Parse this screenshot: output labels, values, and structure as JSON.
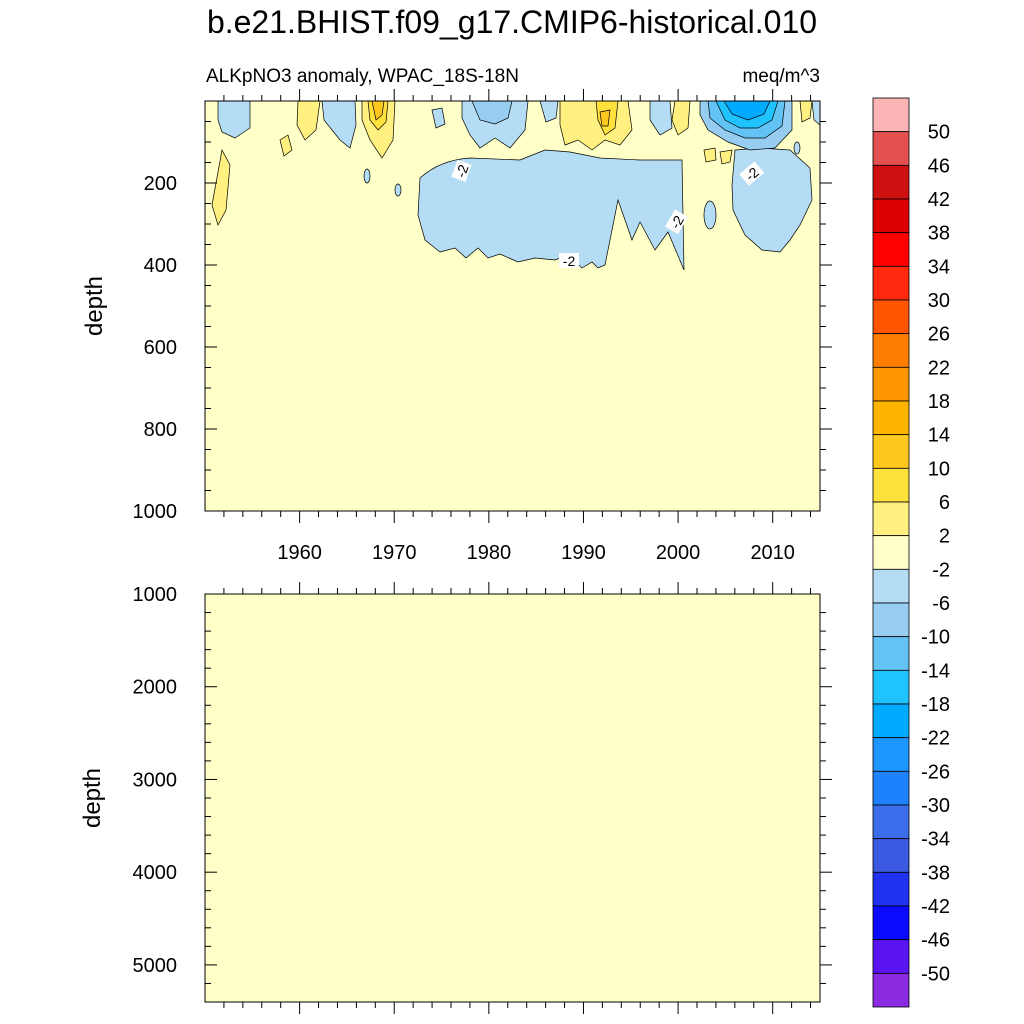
{
  "chart_data": {
    "type": "heatmap",
    "title": "b.e21.BHIST.f09_g17.CMIP6-historical.010",
    "subtitle_left": "ALKpNO3 anomaly, WPAC_18S-18N",
    "subtitle_right": "meq/m^3",
    "colorbar": {
      "labels": [
        "50",
        "46",
        "42",
        "38",
        "34",
        "30",
        "26",
        "22",
        "18",
        "14",
        "10",
        "6",
        "2",
        "-2",
        "-6",
        "-10",
        "-14",
        "-18",
        "-22",
        "-26",
        "-30",
        "-34",
        "-38",
        "-42",
        "-46",
        "-50"
      ],
      "colors": [
        "#fdb4b4",
        "#e45050",
        "#cf1010",
        "#dd0000",
        "#ff0000",
        "#ff2a0e",
        "#ff5500",
        "#ff7d00",
        "#ff9800",
        "#ffb400",
        "#ffc81e",
        "#ffe13c",
        "#fff080",
        "#ffffc8",
        "#b4dcf5",
        "#96cdf0",
        "#64c3f5",
        "#1ec3ff",
        "#00aaff",
        "#1e96ff",
        "#1e82ff",
        "#3c6eeb",
        "#3c5ae1",
        "#1e32f0",
        "#0a0aff",
        "#5a14f0",
        "#8a2be2"
      ]
    },
    "panels": [
      {
        "ylabel": "depth",
        "ylim": [
          0,
          1000
        ],
        "yticks": [
          "200",
          "400",
          "600",
          "800",
          "1000"
        ],
        "xlim": [
          1950,
          2015
        ],
        "xticks": [
          "1960",
          "1970",
          "1980",
          "1990",
          "2000",
          "2010"
        ],
        "background_value": "-2 to 2",
        "contour_labels": [
          "-2",
          "-2",
          "-2",
          "-2"
        ]
      },
      {
        "ylabel": "depth",
        "ylim": [
          1000,
          5400
        ],
        "yticks": [
          "1000",
          "2000",
          "3000",
          "4000",
          "5000"
        ],
        "xlim": [
          1950,
          2015
        ],
        "background_value": "-2 to 2"
      }
    ]
  }
}
